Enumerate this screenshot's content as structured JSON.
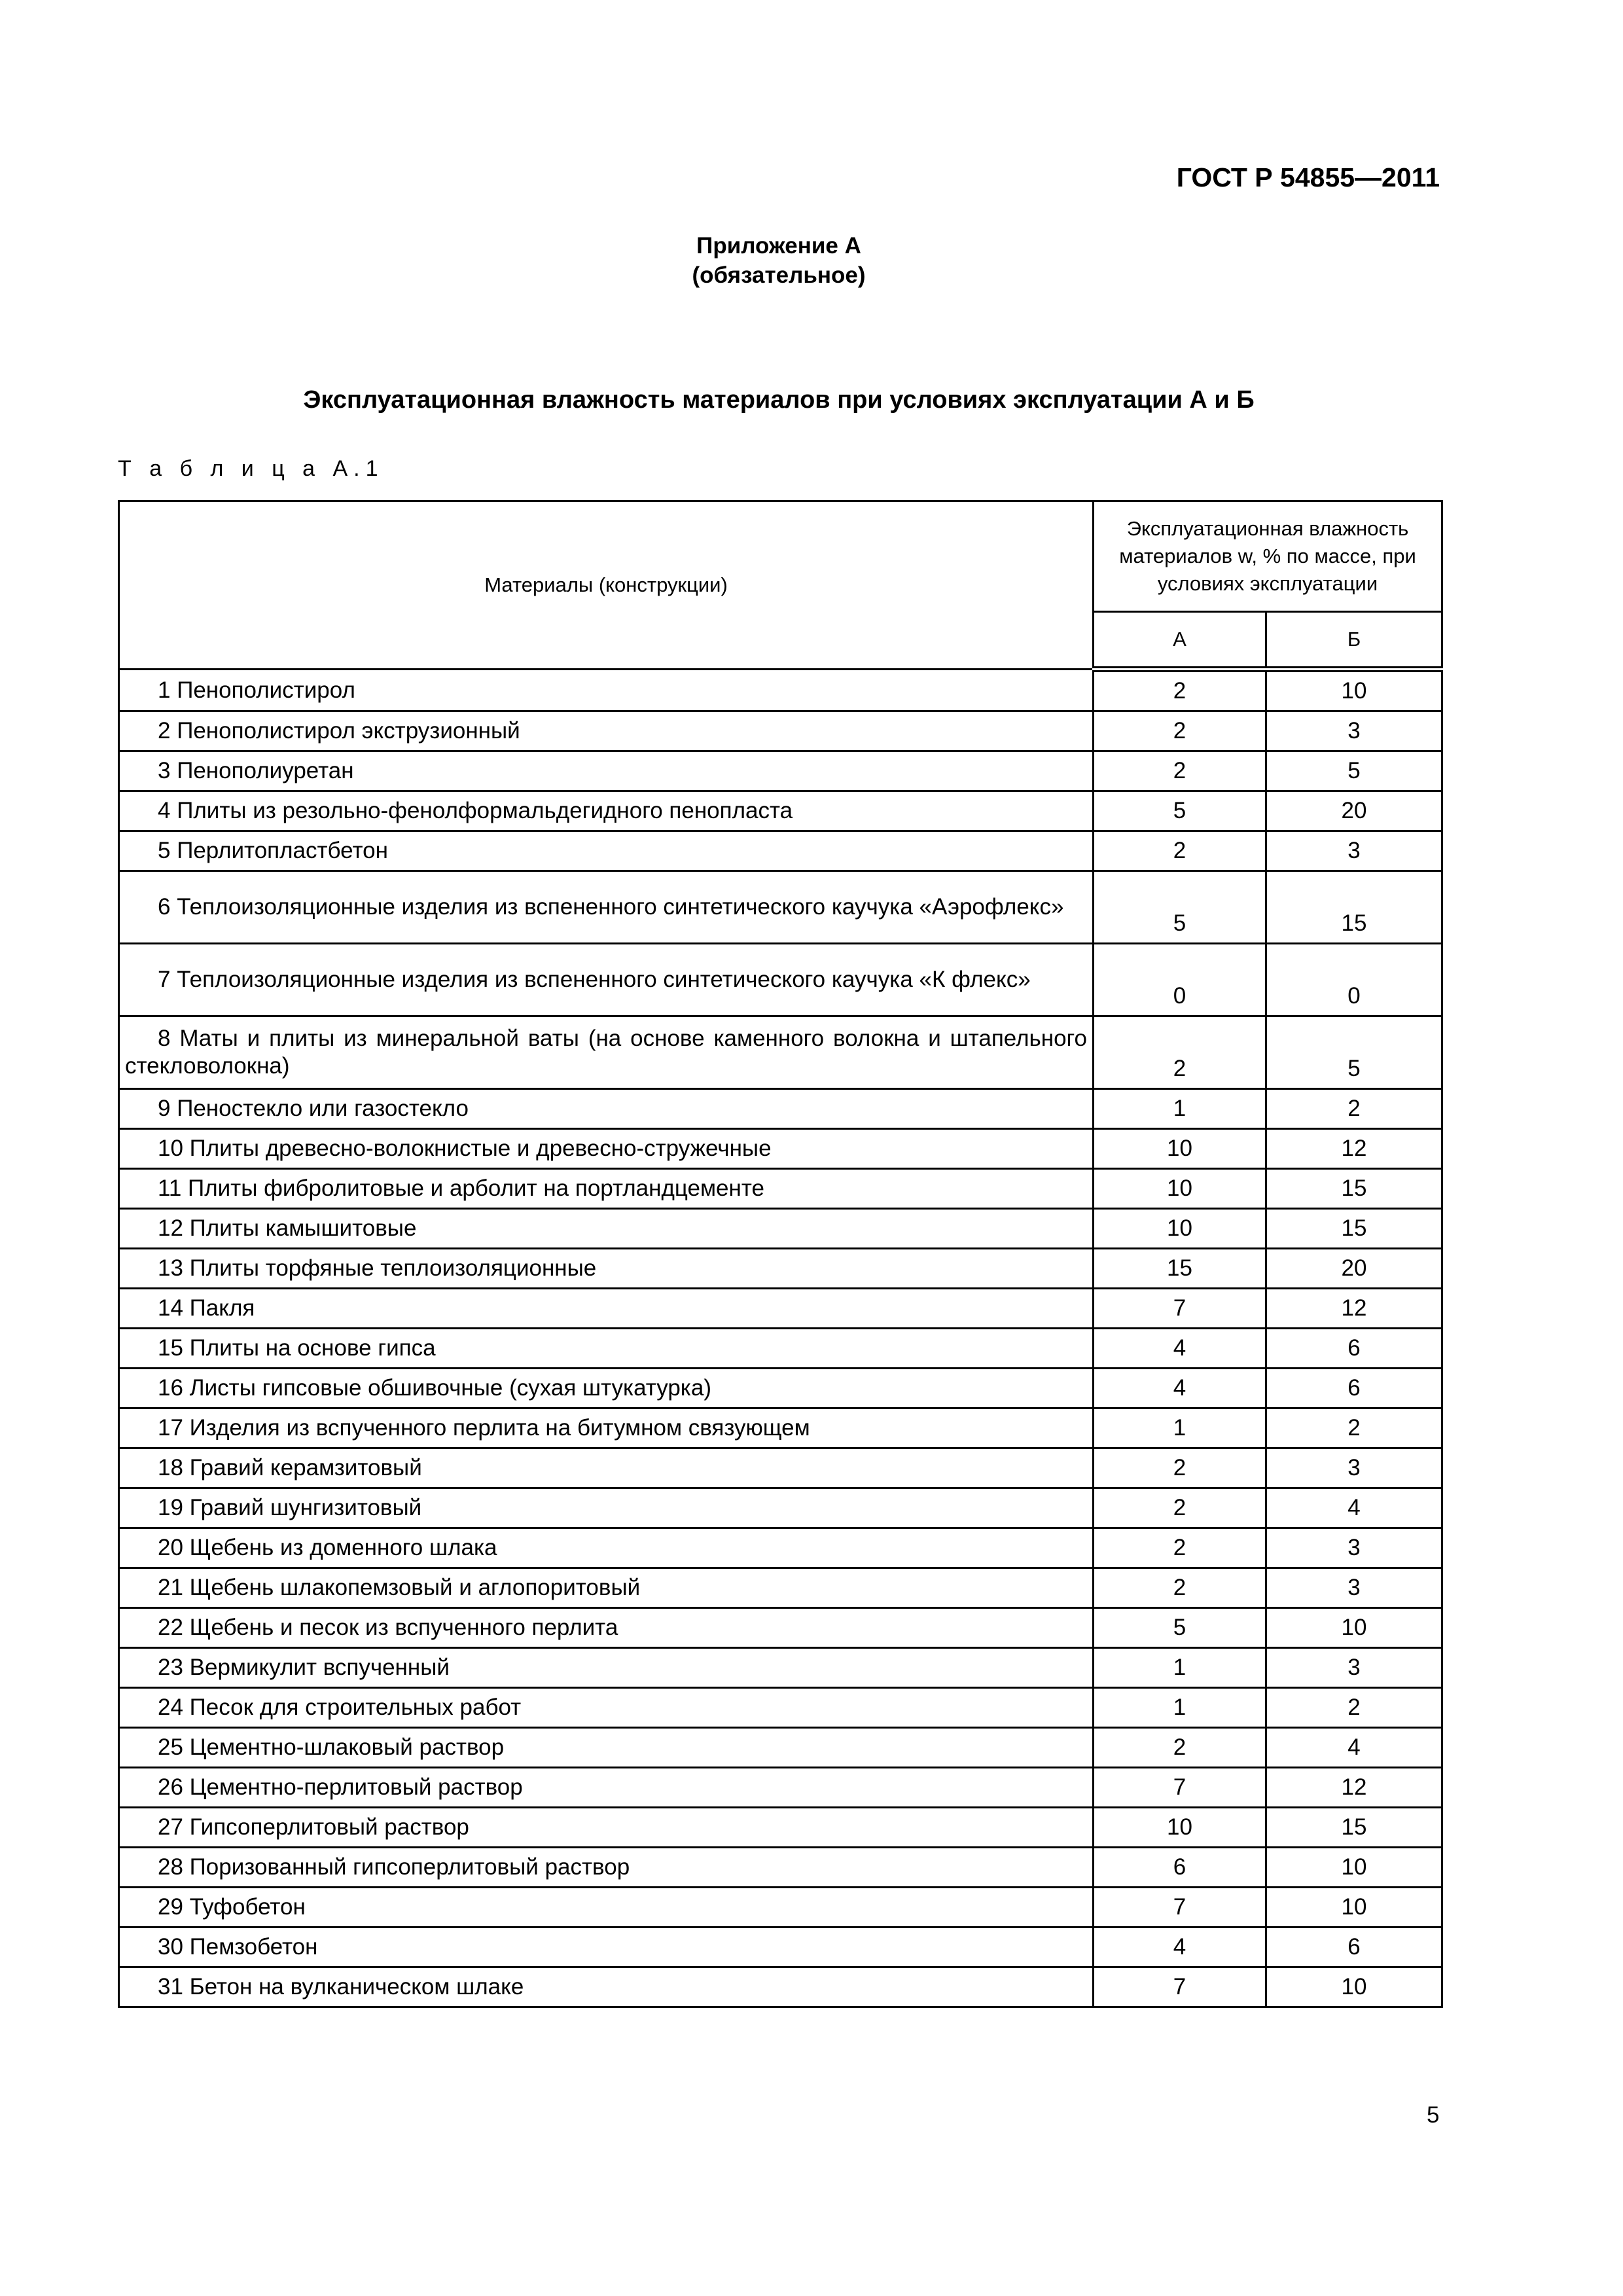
{
  "header": {
    "standard": "ГОСТ Р 54855—2011"
  },
  "annex": {
    "title": "Приложение А",
    "status": "(обязательное)"
  },
  "section_title": "Эксплуатационная влажность материалов при условиях эксплуатации А и Б",
  "table": {
    "label": "Т а б л и ц а  А.1",
    "col_material": "Материалы (конструкции)",
    "col_moisture": "Эксплуатационная влажность материалов w, % по массе, при условиях эксплуатации",
    "col_a": "А",
    "col_b": "Б",
    "rows": [
      {
        "material": "1  Пенополистирол",
        "a": "2",
        "b": "10"
      },
      {
        "material": "2  Пенополистирол экструзионный",
        "a": "2",
        "b": "3"
      },
      {
        "material": "3  Пенополиуретан",
        "a": "2",
        "b": "5"
      },
      {
        "material": "4  Плиты из резольно-фенолформальдегидного пенопласта",
        "a": "5",
        "b": "20"
      },
      {
        "material": "5  Перлитопластбетон",
        "a": "2",
        "b": "3"
      },
      {
        "material": "6 Теплоизоляционные изделия из вспененного синтетического каучука «Аэрофлекс»",
        "a": "5",
        "b": "15"
      },
      {
        "material": "7 Теплоизоляционные изделия из вспененного синтетического каучука «К флекс»",
        "a": "0",
        "b": "0"
      },
      {
        "material": "8  Маты и плиты из минеральной ваты (на основе каменного волокна и штапельного стекловолокна)",
        "a": "2",
        "b": "5"
      },
      {
        "material": "9  Пеностекло или газостекло",
        "a": "1",
        "b": "2"
      },
      {
        "material": "10  Плиты древесно-волокнистые и древесно-стружечные",
        "a": "10",
        "b": "12"
      },
      {
        "material": "11  Плиты фибролитовые и арболит на портландцементе",
        "a": "10",
        "b": "15"
      },
      {
        "material": "12  Плиты камышитовые",
        "a": "10",
        "b": "15"
      },
      {
        "material": "13  Плиты торфяные теплоизоляционные",
        "a": "15",
        "b": "20"
      },
      {
        "material": "14  Пакля",
        "a": "7",
        "b": "12"
      },
      {
        "material": "15  Плиты на основе гипса",
        "a": "4",
        "b": "6"
      },
      {
        "material": "16  Листы гипсовые обшивочные (сухая штукатурка)",
        "a": "4",
        "b": "6"
      },
      {
        "material": "17  Изделия из вспученного перлита на битумном связующем",
        "a": "1",
        "b": "2"
      },
      {
        "material": "18  Гравий керамзитовый",
        "a": "2",
        "b": "3"
      },
      {
        "material": "19  Гравий шунгизитовый",
        "a": "2",
        "b": "4"
      },
      {
        "material": "20  Щебень из доменного шлака",
        "a": "2",
        "b": "3"
      },
      {
        "material": "21  Щебень шлакопемзовый и аглопоритовый",
        "a": "2",
        "b": "3"
      },
      {
        "material": "22  Щебень и песок из вспученного перлита",
        "a": "5",
        "b": "10"
      },
      {
        "material": "23  Вермикулит вспученный",
        "a": "1",
        "b": "3"
      },
      {
        "material": "24  Песок для строительных работ",
        "a": "1",
        "b": "2"
      },
      {
        "material": "25  Цементно-шлаковый раствор",
        "a": "2",
        "b": "4"
      },
      {
        "material": "26  Цементно-перлитовый раствор",
        "a": "7",
        "b": "12"
      },
      {
        "material": "27  Гипсоперлитовый раствор",
        "a": "10",
        "b": "15"
      },
      {
        "material": "28  Поризованный гипсоперлитовый раствор",
        "a": "6",
        "b": "10"
      },
      {
        "material": "29  Туфобетон",
        "a": "7",
        "b": "10"
      },
      {
        "material": "30  Пемзобетон",
        "a": "4",
        "b": "6"
      },
      {
        "material": "31  Бетон на вулканическом шлаке",
        "a": "7",
        "b": "10"
      }
    ]
  },
  "page_number": "5"
}
